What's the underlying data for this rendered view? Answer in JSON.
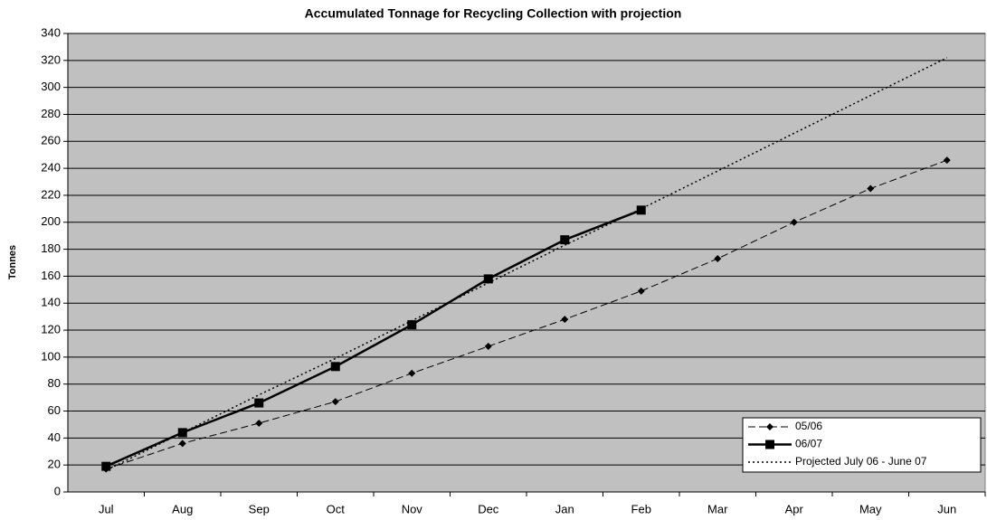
{
  "chart_data": {
    "type": "line",
    "title": "Accumulated Tonnage for Recycling Collection with projection",
    "y_label": "Tonnes",
    "categories": [
      "Jul",
      "Aug",
      "Sep",
      "Oct",
      "Nov",
      "Dec",
      "Jan",
      "Feb",
      "Mar",
      "Apr",
      "May",
      "Jun"
    ],
    "series": [
      {
        "name": "05/06",
        "color": "#000000",
        "dash": "dashed",
        "marker": "diamond",
        "values": [
          17,
          36,
          51,
          67,
          88,
          108,
          128,
          149,
          173,
          200,
          225,
          246
        ]
      },
      {
        "name": "06/07",
        "color": "#000000",
        "dash": "solid",
        "marker": "square",
        "values": [
          19,
          44,
          66,
          93,
          124,
          158,
          187,
          209,
          null,
          null,
          null,
          null
        ]
      },
      {
        "name": "Projected July 06 - June 07",
        "color": "#000000",
        "dash": "dotted",
        "marker": "none",
        "values": [
          16,
          44,
          72,
          99,
          127,
          155,
          183,
          210,
          238,
          266,
          294,
          322
        ]
      }
    ],
    "ylim": [
      0,
      340
    ],
    "yticks": [
      0,
      20,
      40,
      60,
      80,
      100,
      120,
      140,
      160,
      180,
      200,
      220,
      240,
      260,
      280,
      300,
      320,
      340
    ],
    "grid": true,
    "background": "#c0c0c0",
    "legend": "lower right"
  }
}
